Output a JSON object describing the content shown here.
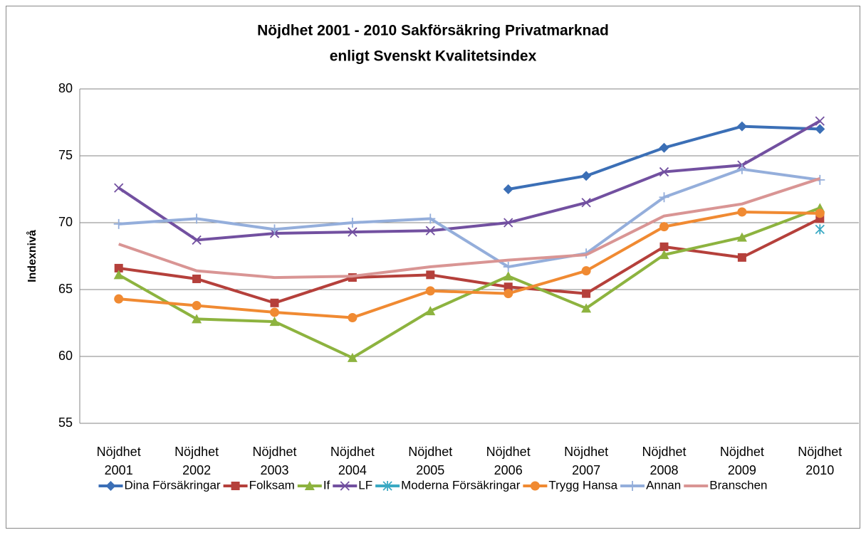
{
  "chart_data": {
    "type": "line",
    "title": "Nöjdhet 2001 - 2010 Sakförsäkring Privatmarknad",
    "subtitle": "enligt Svenskt Kvalitetsindex",
    "y_label": "Indexnivå",
    "categories": [
      "Nöjdhet 2001",
      "Nöjdhet 2002",
      "Nöjdhet 2003",
      "Nöjdhet 2004",
      "Nöjdhet 2005",
      "Nöjdhet 2006",
      "Nöjdhet 2007",
      "Nöjdhet 2008",
      "Nöjdhet 2009",
      "Nöjdhet 2010"
    ],
    "series": [
      {
        "name": "Dina Försäkringar",
        "color": "#3b6fb6",
        "marker": "diamond",
        "values": [
          null,
          null,
          null,
          null,
          null,
          72.5,
          73.5,
          75.6,
          77.2,
          77.0
        ]
      },
      {
        "name": "Folksam",
        "color": "#b5403b",
        "marker": "square",
        "values": [
          66.6,
          65.8,
          64.0,
          65.9,
          66.1,
          65.2,
          64.7,
          68.2,
          67.4,
          70.3
        ]
      },
      {
        "name": "If",
        "color": "#8db33f",
        "marker": "triangle",
        "values": [
          66.1,
          62.8,
          62.6,
          59.9,
          63.4,
          66.0,
          63.6,
          67.6,
          68.9,
          71.1
        ]
      },
      {
        "name": "LF",
        "color": "#7250a0",
        "marker": "x",
        "values": [
          72.6,
          68.7,
          69.2,
          69.3,
          69.4,
          70.0,
          71.5,
          73.8,
          74.3,
          77.6
        ]
      },
      {
        "name": "Moderna Försäkringar",
        "color": "#3aa9c3",
        "marker": "star",
        "values": [
          null,
          null,
          null,
          null,
          null,
          null,
          null,
          null,
          null,
          69.5
        ]
      },
      {
        "name": "Trygg Hansa",
        "color": "#f08a32",
        "marker": "circle",
        "values": [
          64.3,
          63.8,
          63.3,
          62.9,
          64.9,
          64.7,
          66.4,
          69.7,
          70.8,
          70.7
        ]
      },
      {
        "name": "Annan",
        "color": "#94aedb",
        "marker": "plus",
        "values": [
          69.9,
          70.3,
          69.5,
          70.0,
          70.3,
          66.7,
          67.7,
          71.9,
          74.0,
          73.2
        ]
      },
      {
        "name": "Branschen",
        "color": "#d99594",
        "marker": "none",
        "values": [
          68.4,
          66.4,
          65.9,
          66.0,
          66.7,
          67.2,
          67.6,
          70.5,
          71.4,
          73.3
        ]
      }
    ],
    "ylim": [
      55,
      80
    ],
    "yticks": [
      55,
      60,
      65,
      70,
      75,
      80
    ],
    "grid": true,
    "legend": "bottom"
  }
}
